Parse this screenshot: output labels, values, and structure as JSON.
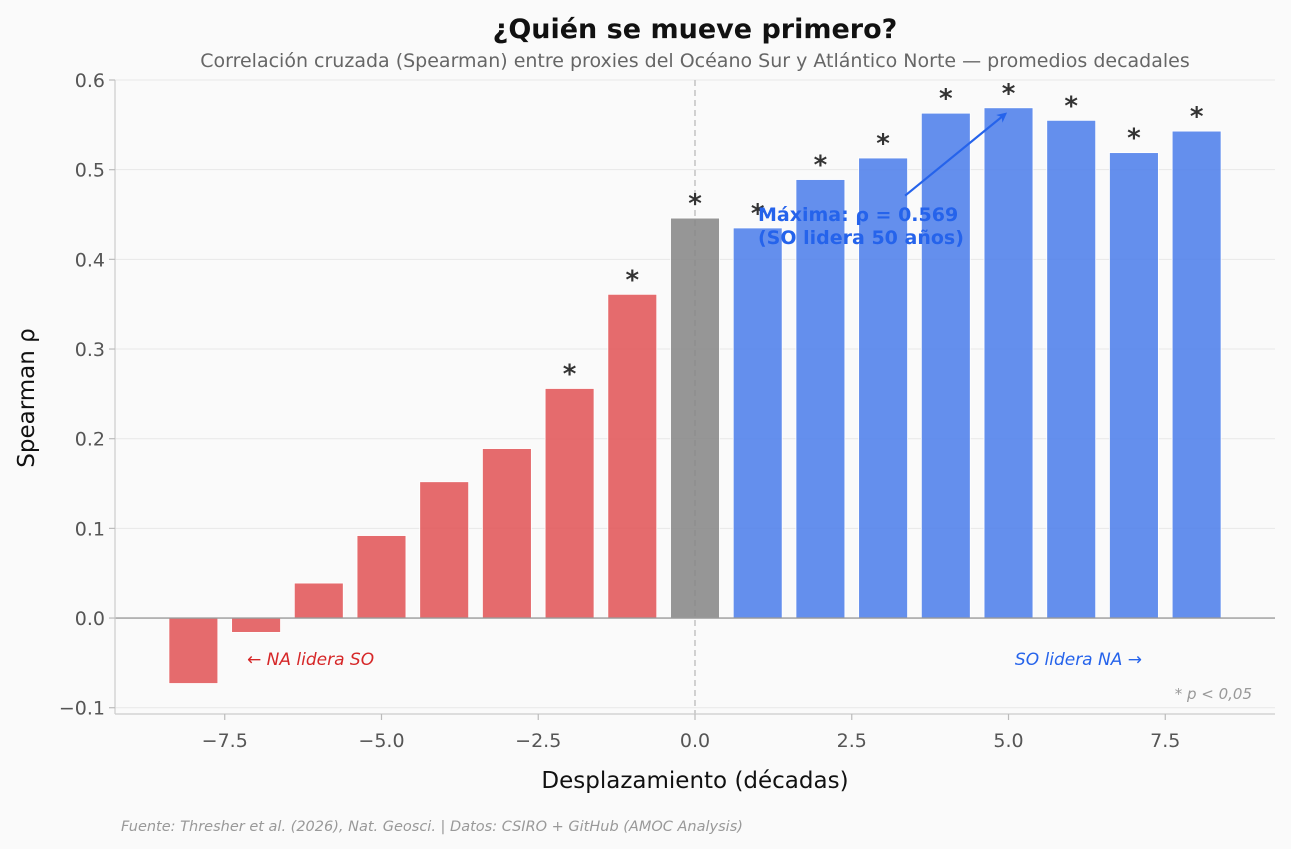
{
  "chart_data": {
    "type": "bar",
    "title": "¿Quién se mueve primero?",
    "subtitle": "Correlación cruzada (Spearman) entre proxies del Océano Sur y Atlántico Norte — promedios decadales",
    "xlabel": "Desplazamiento (décadas)",
    "ylabel": "Spearman ρ",
    "xlim": [
      -9.25,
      9.25
    ],
    "ylim": [
      -0.107,
      0.6
    ],
    "x_ticks": [
      -7.5,
      -5.0,
      -2.5,
      0.0,
      2.5,
      5.0,
      7.5
    ],
    "x_tick_labels": [
      "−7.5",
      "−5.0",
      "−2.5",
      "0.0",
      "2.5",
      "5.0",
      "7.5"
    ],
    "y_ticks": [
      -0.1,
      0.0,
      0.1,
      0.2,
      0.3,
      0.4,
      0.5,
      0.6
    ],
    "y_tick_labels": [
      "−0.1",
      "0.0",
      "0.1",
      "0.2",
      "0.3",
      "0.4",
      "0.5",
      "0.6"
    ],
    "grid": true,
    "significance_marker": "*",
    "x": [
      -8,
      -7,
      -6,
      -5,
      -4,
      -3,
      -2,
      -1,
      0,
      1,
      2,
      3,
      4,
      5,
      6,
      7,
      8
    ],
    "values": [
      -0.073,
      -0.016,
      0.039,
      0.092,
      0.152,
      0.189,
      0.256,
      0.361,
      0.446,
      0.435,
      0.489,
      0.513,
      0.563,
      0.569,
      0.555,
      0.519,
      0.543
    ],
    "significant": [
      false,
      false,
      false,
      false,
      false,
      false,
      true,
      true,
      true,
      true,
      true,
      true,
      true,
      true,
      true,
      true,
      true
    ],
    "colors": {
      "negative_lag": "#e15759",
      "zero_lag": "#888888",
      "positive_lag": "#4e7fea"
    },
    "annotations": {
      "peak_line1": "Máxima: ρ = 0.569",
      "peak_line2": "(SO lidera 50 años)",
      "peak_x": 5,
      "peak_value": 0.569,
      "peak_color": "#2563eb",
      "left_region": "← NA lidera SO",
      "left_region_color": "#d62728",
      "right_region": "SO lidera NA →",
      "right_region_color": "#2563eb",
      "significance_note": "* p < 0,05"
    },
    "footer": "Fuente: Thresher et al. (2026), Nat. Geosci. | Datos: CSIRO + GitHub (AMOC Analysis)"
  }
}
